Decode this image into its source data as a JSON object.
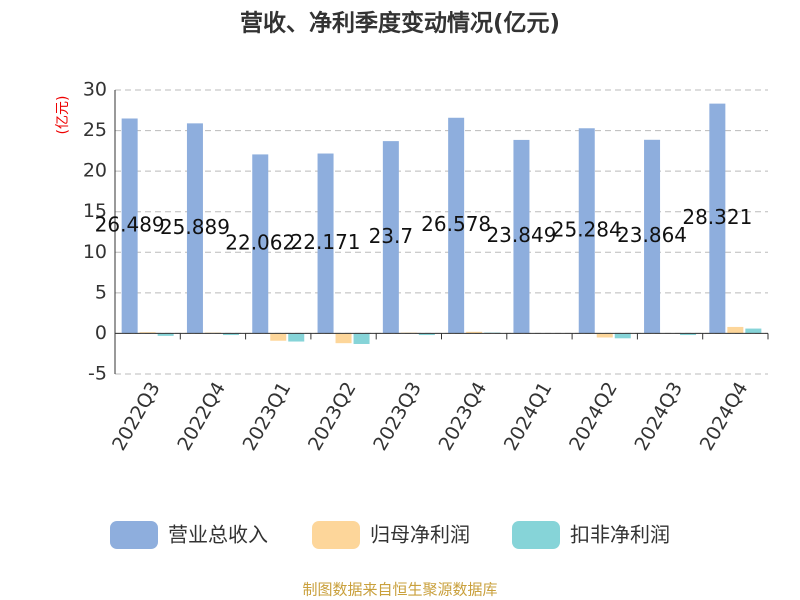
{
  "chart_data": {
    "type": "bar",
    "title": "营收、净利季度变动情况(亿元)",
    "y_label": "(亿元)",
    "source": "制图数据来自恒生聚源数据库",
    "categories": [
      "2022Q3",
      "2022Q4",
      "2023Q1",
      "2023Q2",
      "2023Q3",
      "2023Q4",
      "2024Q1",
      "2024Q2",
      "2024Q3",
      "2024Q4"
    ],
    "series": [
      {
        "name": "营业总收入",
        "color": "#8eaedd",
        "values": [
          26.489,
          25.889,
          22.062,
          22.171,
          23.7,
          26.578,
          23.849,
          25.284,
          23.864,
          28.321
        ],
        "show_labels": true
      },
      {
        "name": "归母净利润",
        "color": "#fdd69a",
        "values": [
          0.15,
          0.1,
          -0.9,
          -1.2,
          0.1,
          0.2,
          0.05,
          -0.5,
          0.05,
          0.8
        ]
      },
      {
        "name": "扣非净利润",
        "color": "#86d4d8",
        "values": [
          -0.3,
          -0.2,
          -1.0,
          -1.3,
          -0.2,
          0.1,
          0.05,
          -0.6,
          -0.2,
          0.6
        ]
      }
    ],
    "ylim": [
      -5,
      30
    ],
    "yticks": [
      -5,
      0,
      5,
      10,
      15,
      20,
      25,
      30
    ],
    "grid": true
  }
}
